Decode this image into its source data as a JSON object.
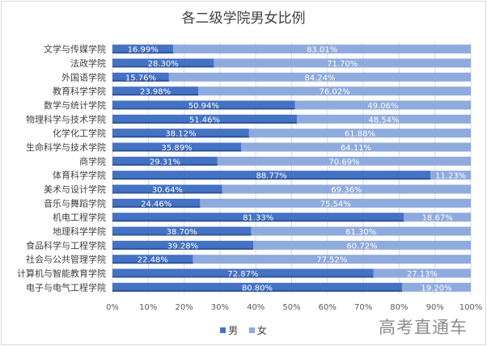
{
  "chart_data": {
    "type": "bar",
    "orientation": "horizontal",
    "stacked": "percent",
    "title": "各二级学院男女比例",
    "categories": [
      "文学与传媒学院",
      "法政学院",
      "外国语学院",
      "教育科学学院",
      "数学与统计学院",
      "物理科学与技术学院",
      "化学化工学院",
      "生命科学与技术学院",
      "商学院",
      "体育科学学院",
      "美术与设计学院",
      "音乐与舞蹈学院",
      "机电工程学院",
      "地理科学学院",
      "食品科学与工程学院",
      "社会与公共管理学院",
      "计算机与智能教育学院",
      "电子与电气工程学院"
    ],
    "series": [
      {
        "name": "男",
        "color": "#4472C4",
        "values": [
          16.99,
          28.3,
          15.76,
          23.98,
          50.94,
          51.46,
          38.12,
          35.89,
          29.31,
          88.77,
          30.64,
          24.46,
          81.33,
          38.7,
          39.28,
          22.48,
          72.87,
          80.8
        ]
      },
      {
        "name": "女",
        "color": "#8FAADC",
        "values": [
          83.01,
          71.7,
          84.24,
          76.02,
          49.06,
          48.54,
          61.88,
          64.11,
          70.69,
          11.23,
          69.36,
          75.54,
          18.67,
          61.3,
          60.72,
          77.52,
          27.13,
          19.2
        ]
      }
    ],
    "x_ticks": [
      "0%",
      "10%",
      "20%",
      "30%",
      "40%",
      "50%",
      "60%",
      "70%",
      "80%",
      "90%",
      "100%"
    ],
    "xlim": [
      0,
      100
    ],
    "grid": true,
    "legend": "bottom"
  },
  "watermark": "高考直通车"
}
